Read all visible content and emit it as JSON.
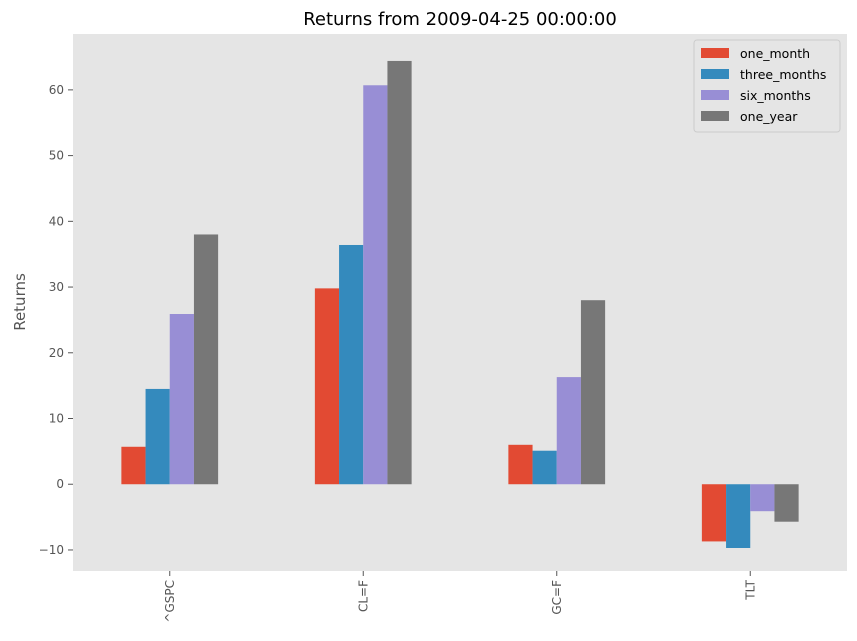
{
  "chart_data": {
    "type": "bar",
    "title": "Returns from 2009-04-25 00:00:00",
    "xlabel": "",
    "ylabel": "Returns",
    "categories": [
      "^GSPC",
      "CL=F",
      "GC=F",
      "TLT"
    ],
    "series": [
      {
        "name": "one_month",
        "color": "#E24A33",
        "values": [
          5.7,
          29.8,
          6.0,
          -8.7
        ]
      },
      {
        "name": "three_months",
        "color": "#348ABD",
        "values": [
          14.5,
          36.4,
          5.1,
          -9.7
        ]
      },
      {
        "name": "six_months",
        "color": "#988ED5",
        "values": [
          25.9,
          60.7,
          16.3,
          -4.1
        ]
      },
      {
        "name": "one_year",
        "color": "#777777",
        "values": [
          38.0,
          64.4,
          28.0,
          -5.7
        ]
      }
    ],
    "ylim": [
      -13.2,
      68.5
    ],
    "yticks": [
      -10,
      0,
      10,
      20,
      30,
      40,
      50,
      60
    ],
    "ytick_labels": [
      "−10",
      "0",
      "10",
      "20",
      "30",
      "40",
      "50",
      "60"
    ],
    "grid": false,
    "legend": "top-right",
    "background": "#E5E5E5"
  }
}
